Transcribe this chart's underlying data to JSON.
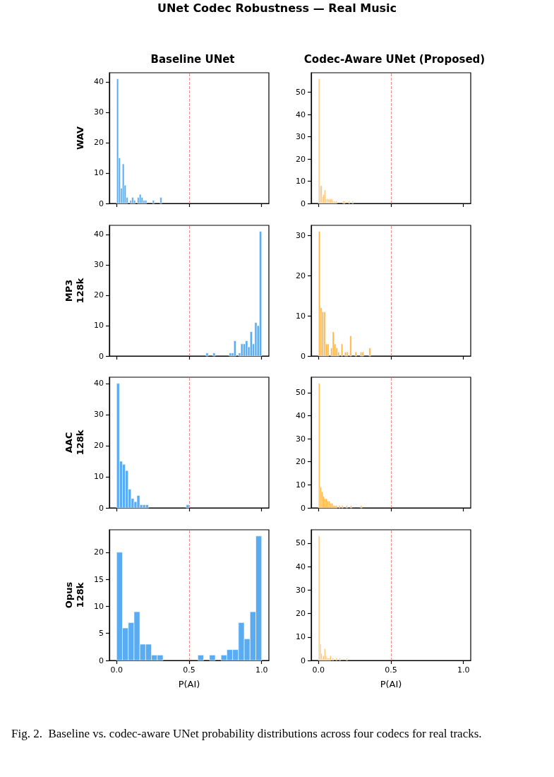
{
  "chart_data": [
    {
      "type": "histogram",
      "title": "Baseline UNet",
      "ylabel": "WAV",
      "annotations": [
        "UNet Codec Robustness — Real Music"
      ],
      "tick_labels": "y",
      "color": "#5aacf2",
      "bins": [
        0,
        0.013,
        0.026,
        0.039,
        0.052,
        0.065,
        0.078,
        0.091,
        0.104,
        0.117,
        0.13,
        0.143,
        0.156,
        0.169,
        0.182,
        0.195,
        0.208,
        0.221,
        0.234,
        0.247,
        0.26,
        0.273,
        0.286,
        0.299,
        0.312
      ],
      "values": [
        41,
        15,
        5,
        13,
        6,
        2,
        0,
        1,
        2,
        1,
        0,
        2,
        3,
        2,
        1,
        1,
        0,
        0,
        0,
        1,
        0,
        0,
        0,
        2
      ],
      "xlim": [
        -0.05,
        1.05
      ],
      "xticks": [
        0,
        0.5,
        1
      ],
      "ylim": [
        0,
        43
      ],
      "yticks": [
        0,
        10,
        20,
        30,
        40
      ],
      "ref_lines": [
        {
          "axis": "x",
          "value": 0.5,
          "color": "#f28b8b",
          "line_style": "dashed"
        }
      ]
    },
    {
      "type": "histogram",
      "title": "Codec-Aware UNet (Proposed)",
      "tick_labels": "y",
      "color": "#ffb347",
      "bins": [
        0,
        0.008,
        0.016,
        0.024,
        0.032,
        0.04,
        0.048,
        0.056,
        0.064,
        0.072,
        0.08,
        0.088,
        0.096,
        0.104,
        0.112,
        0.12,
        0.128,
        0.136,
        0.144,
        0.152,
        0.16,
        0.168,
        0.176,
        0.184,
        0.192,
        0.2,
        0.208,
        0.216,
        0.224,
        0.232,
        0.24
      ],
      "values": [
        56,
        8,
        8,
        3,
        4,
        6,
        2,
        2,
        2,
        2,
        2,
        2,
        1,
        1,
        1,
        1,
        0,
        0,
        0,
        0,
        0,
        1,
        1,
        0,
        0,
        0,
        1,
        0,
        0,
        1
      ],
      "xlim": [
        -0.05,
        1.05
      ],
      "xticks": [
        0,
        0.5,
        1
      ],
      "ylim": [
        0,
        58.8
      ],
      "yticks": [
        0,
        10,
        20,
        30,
        40,
        50
      ],
      "ref_lines": [
        {
          "axis": "x",
          "value": 0.5,
          "color": "#f28b8b",
          "line_style": "dashed"
        }
      ]
    },
    {
      "type": "histogram",
      "ylabel": "MP3\n128k",
      "tick_labels": "y",
      "color": "#5aacf2",
      "bins": [
        0.616,
        0.632,
        0.648,
        0.664,
        0.68,
        0.696,
        0.712,
        0.728,
        0.744,
        0.76,
        0.776,
        0.792,
        0.808,
        0.824,
        0.84,
        0.856,
        0.872,
        0.888,
        0.904,
        0.92,
        0.936,
        0.952,
        0.968,
        0.984,
        1.0
      ],
      "values": [
        1,
        0,
        0,
        1,
        0,
        0,
        0,
        0,
        0,
        0,
        1,
        1,
        5,
        0,
        1,
        4,
        4,
        5,
        3,
        8,
        4,
        11,
        10,
        41
      ],
      "xlim": [
        -0.05,
        1.05
      ],
      "xticks": [
        0,
        0.5,
        1
      ],
      "ylim": [
        0,
        43
      ],
      "yticks": [
        0,
        10,
        20,
        30,
        40
      ],
      "ref_lines": [
        {
          "axis": "x",
          "value": 0.5,
          "color": "#f28b8b",
          "line_style": "dashed"
        }
      ]
    },
    {
      "type": "histogram",
      "tick_labels": "y",
      "color": "#ffb347",
      "bins": [
        0,
        0.012,
        0.024,
        0.036,
        0.048,
        0.06,
        0.072,
        0.084,
        0.096,
        0.108,
        0.12,
        0.132,
        0.144,
        0.156,
        0.168,
        0.18,
        0.192,
        0.204,
        0.216,
        0.228,
        0.24,
        0.252,
        0.264,
        0.276,
        0.288,
        0.3,
        0.312,
        0.324,
        0.336,
        0.348,
        0.36
      ],
      "values": [
        31,
        12,
        11,
        11,
        3,
        3,
        0,
        2,
        6,
        3,
        2,
        1,
        0,
        3,
        0,
        1,
        1,
        0,
        5,
        0,
        0,
        1,
        0,
        0,
        1,
        1,
        0,
        0,
        0,
        2
      ],
      "xlim": [
        -0.05,
        1.05
      ],
      "xticks": [
        0,
        0.5,
        1
      ],
      "ylim": [
        0,
        32.5
      ],
      "yticks": [
        0,
        10,
        20,
        30
      ],
      "ref_lines": [
        {
          "axis": "x",
          "value": 0.5,
          "color": "#f28b8b",
          "line_style": "dashed"
        }
      ]
    },
    {
      "type": "histogram",
      "ylabel": "AAC\n128k",
      "tick_labels": "y",
      "color": "#5aacf2",
      "bins": [
        0,
        0.02,
        0.04,
        0.06,
        0.08,
        0.1,
        0.12,
        0.14,
        0.16,
        0.18,
        0.2,
        0.22,
        0.24,
        0.26,
        0.28,
        0.3,
        0.32,
        0.34,
        0.36,
        0.38,
        0.4,
        0.42,
        0.44,
        0.46,
        0.48,
        0.5
      ],
      "values": [
        40,
        15,
        14,
        12,
        6,
        3,
        2,
        4,
        1,
        1,
        1,
        0,
        0,
        0,
        0,
        0,
        0,
        0,
        0,
        0,
        0,
        0,
        0,
        0,
        1
      ],
      "xlim": [
        -0.05,
        1.05
      ],
      "xticks": [
        0,
        0.5,
        1
      ],
      "ylim": [
        0,
        42
      ],
      "yticks": [
        0,
        10,
        20,
        30,
        40
      ],
      "ref_lines": [
        {
          "axis": "x",
          "value": 0.5,
          "color": "#f28b8b",
          "line_style": "dashed"
        }
      ]
    },
    {
      "type": "histogram",
      "tick_labels": "y",
      "color": "#ffb347",
      "bins": [
        0,
        0.01,
        0.02,
        0.03,
        0.04,
        0.05,
        0.06,
        0.07,
        0.08,
        0.09,
        0.1,
        0.11,
        0.12,
        0.13,
        0.14,
        0.15,
        0.16,
        0.17,
        0.18,
        0.19,
        0.2,
        0.21,
        0.22,
        0.23,
        0.24,
        0.25,
        0.26,
        0.27,
        0.28,
        0.29,
        0.3
      ],
      "values": [
        54,
        9,
        7,
        5,
        4,
        4,
        3,
        3,
        2,
        2,
        1,
        1,
        1,
        0,
        1,
        0,
        1,
        0,
        0,
        1,
        0,
        0,
        1,
        0,
        0,
        0,
        0,
        0,
        0,
        1
      ],
      "xlim": [
        -0.05,
        1.05
      ],
      "xticks": [
        0,
        0.5,
        1
      ],
      "ylim": [
        0,
        56.7
      ],
      "yticks": [
        0,
        10,
        20,
        30,
        40,
        50
      ],
      "ref_lines": [
        {
          "axis": "x",
          "value": 0.5,
          "color": "#f28b8b",
          "line_style": "dashed"
        }
      ]
    },
    {
      "type": "histogram",
      "ylabel": "Opus\n128k",
      "xlabel": "P(AI)",
      "color": "#5aacf2",
      "bins": [
        0,
        0.04,
        0.08,
        0.12,
        0.16,
        0.2,
        0.24,
        0.28,
        0.32,
        0.36,
        0.4,
        0.44,
        0.48,
        0.52,
        0.56,
        0.6,
        0.64,
        0.68,
        0.72,
        0.76,
        0.8,
        0.84,
        0.88,
        0.92,
        0.96,
        1.0
      ],
      "values": [
        20,
        6,
        7,
        9,
        3,
        3,
        1,
        1,
        0,
        0,
        0,
        0,
        0,
        0,
        1,
        0,
        1,
        0,
        1,
        2,
        2,
        7,
        4,
        9,
        23
      ],
      "xlim": [
        -0.05,
        1.05
      ],
      "xticks": [
        {
          "value": 0,
          "label": "0.0"
        },
        {
          "value": 0.5,
          "label": "0.5"
        },
        {
          "value": 1,
          "label": "1.0"
        }
      ],
      "ylim": [
        0,
        24.15
      ],
      "yticks": [
        0,
        5,
        10,
        15,
        20
      ],
      "ref_lines": [
        {
          "axis": "x",
          "value": 0.5,
          "color": "#f28b8b",
          "line_style": "dashed"
        }
      ]
    },
    {
      "type": "histogram",
      "xlabel": "P(AI)",
      "annotations": [
        "Fig. 2.  Baseline vs. codec-aware UNet probability distributions across four codecs for real tracks."
      ],
      "color": "#ffb347",
      "bins": [
        0,
        0.008,
        0.016,
        0.024,
        0.032,
        0.04,
        0.048,
        0.056,
        0.064,
        0.072,
        0.08,
        0.088,
        0.096,
        0.104,
        0.112,
        0.12,
        0.128,
        0.136,
        0.144,
        0.152,
        0.16,
        0.168,
        0.176,
        0.184,
        0.192,
        0.2
      ],
      "values": [
        53,
        7,
        3,
        1,
        2,
        5,
        2,
        1,
        1,
        1,
        2,
        0,
        1,
        0,
        0,
        1,
        0,
        0,
        1,
        0,
        0,
        0,
        0,
        0,
        1
      ],
      "xlim": [
        -0.05,
        1.05
      ],
      "xticks": [
        {
          "value": 0,
          "label": "0.0"
        },
        {
          "value": 0.5,
          "label": "0.5"
        },
        {
          "value": 1,
          "label": "1.0"
        }
      ],
      "ylim": [
        0,
        55.65
      ],
      "yticks": [
        0,
        10,
        20,
        30,
        40,
        50
      ],
      "ref_lines": [
        {
          "axis": "x",
          "value": 0.5,
          "color": "#f28b8b",
          "line_style": "dashed"
        }
      ]
    }
  ]
}
